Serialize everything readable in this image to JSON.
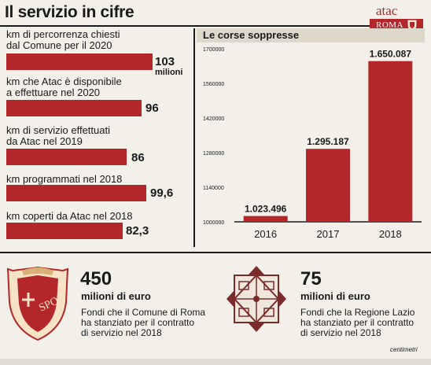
{
  "title": "Il servizio in cifre",
  "logo": {
    "brand": "atac",
    "city": "ROMA"
  },
  "figures": [
    {
      "label": "km di percorrenza chiesti\ndal Comune per il 2020",
      "value": "103",
      "unit": "milioni"
    },
    {
      "label": "km che Atac è disponibile\na effettuare nel 2020",
      "value": "96"
    },
    {
      "label": "km di servizio effettuati\nda Atac nel 2019",
      "value": "86"
    },
    {
      "label": "km programmati nel 2018",
      "value": "99,6"
    },
    {
      "label": "km coperti da Atac nel 2018",
      "value": "82,3"
    }
  ],
  "chart_title": "Le corse soppresse",
  "chart_data": {
    "type": "bar",
    "title": "Le corse soppresse",
    "categories": [
      "2016",
      "2017",
      "2018"
    ],
    "values": [
      1023496,
      1295187,
      1650087
    ],
    "value_labels": [
      "1.023.496",
      "1.295.187",
      "1.650.087"
    ],
    "ylim": [
      1000000,
      1700000
    ],
    "yticks": [
      1000000,
      1140000,
      1280000,
      1420000,
      1560000,
      1700000
    ],
    "ytick_labels": [
      "1000000",
      "1140000",
      "1280000",
      "1420000",
      "1560000",
      "1700000"
    ],
    "grid": false,
    "bar_color": "#b3262a"
  },
  "funding": [
    {
      "amount": "450",
      "unit": "milioni di euro",
      "text": "Fondi che il Comune di Roma\nha stanziato per il contratto\ndi servizio nel 2018"
    },
    {
      "amount": "75",
      "unit": "milioni di euro",
      "text": "Fondi che la Regione Lazio\nha stanziato per il contratto\ndi servizio nel 2018"
    }
  ],
  "credit": "centimetri",
  "colors": {
    "accent": "#b3262a",
    "background": "#f3f0e9",
    "header_band": "#ddd8ca"
  }
}
